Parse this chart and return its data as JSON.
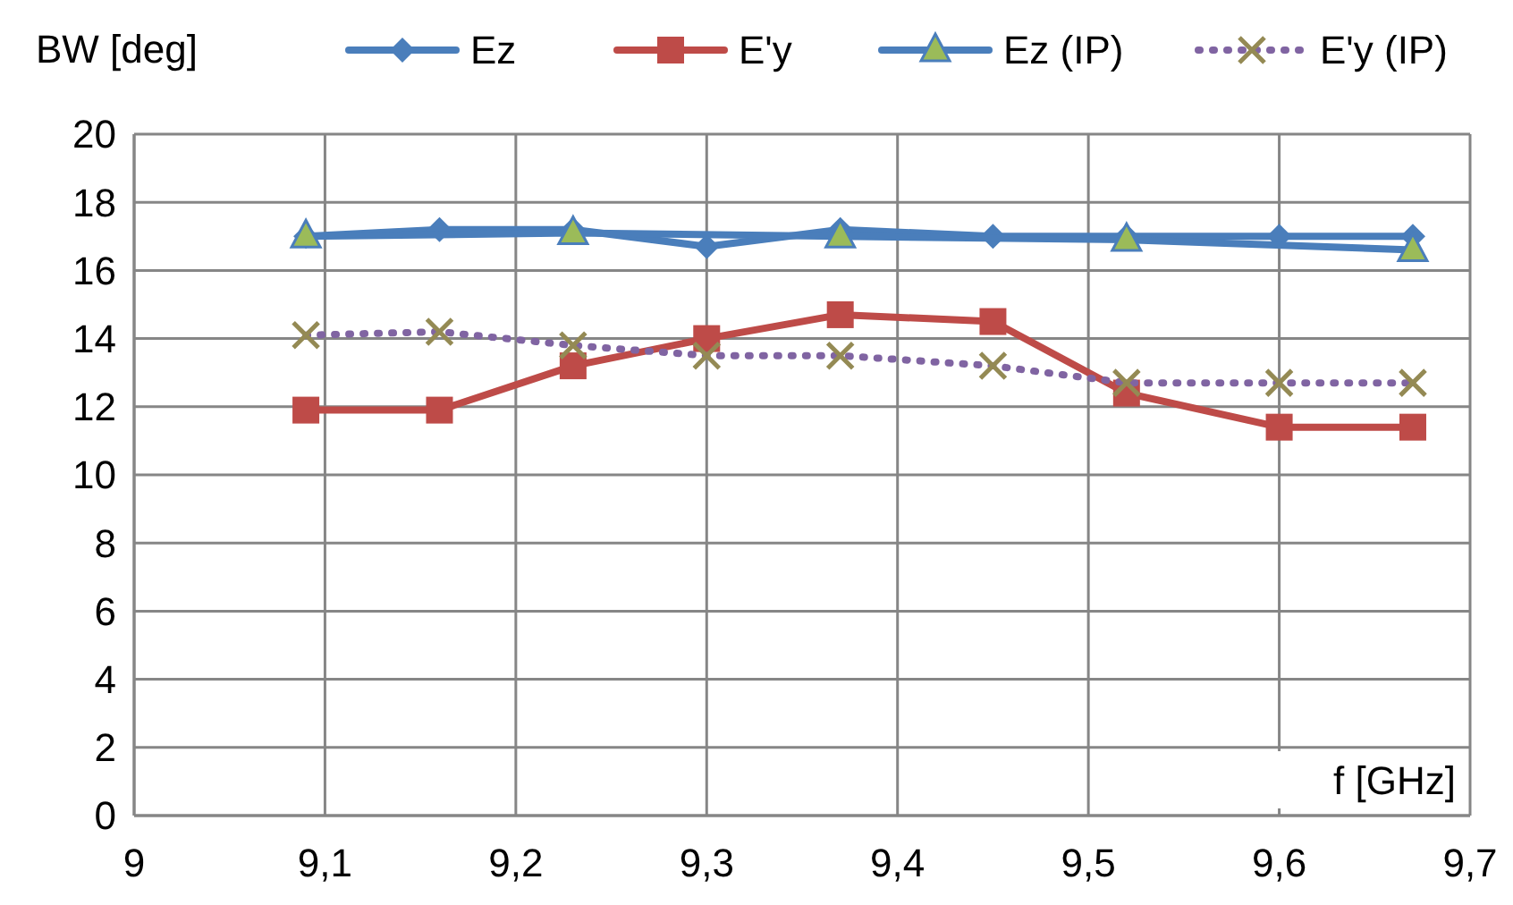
{
  "chart_data": {
    "type": "line",
    "xlabel": "f [GHz]",
    "ylabel": "BW [deg]",
    "x": [
      9.09,
      9.16,
      9.23,
      9.3,
      9.37,
      9.45,
      9.52,
      9.6,
      9.67
    ],
    "series": [
      {
        "name": "Ez",
        "color": "#4a7ebb",
        "marker": "diamond",
        "line_style": "solid",
        "values": [
          17.0,
          17.2,
          17.2,
          16.7,
          17.2,
          17.0,
          17.0,
          17.0,
          17.0
        ]
      },
      {
        "name": "E'y",
        "color": "#be4b48",
        "marker": "square",
        "line_style": "solid",
        "values": [
          11.9,
          11.9,
          13.2,
          14.0,
          14.7,
          14.5,
          12.4,
          11.4,
          11.4
        ]
      },
      {
        "name": "Ez (IP)",
        "color": "#4a7ebb",
        "marker": "triangle",
        "line_style": "solid",
        "values": [
          17.0,
          null,
          17.1,
          null,
          17.0,
          null,
          16.9,
          null,
          16.6
        ]
      },
      {
        "name": "E'y (IP)",
        "color": "#8064a2",
        "marker": "cross",
        "line_style": "dotted",
        "values": [
          14.1,
          14.2,
          13.8,
          13.5,
          13.5,
          13.2,
          12.7,
          12.7,
          12.7
        ]
      }
    ],
    "xlim": [
      9,
      9.7
    ],
    "xticks": [
      9,
      {
        "value": 9.1,
        "label": "9,1"
      },
      {
        "value": 9.2,
        "label": "9,2"
      },
      {
        "value": 9.3,
        "label": "9,3"
      },
      {
        "value": 9.4,
        "label": "9,4"
      },
      {
        "value": 9.5,
        "label": "9,5"
      },
      {
        "value": 9.6,
        "label": "9,6"
      },
      {
        "value": 9.7,
        "label": "9,7"
      }
    ],
    "ylim": [
      0,
      20
    ],
    "yticks": [
      0,
      2,
      4,
      6,
      8,
      10,
      12,
      14,
      16,
      18,
      20
    ],
    "grid": true,
    "legend": "top"
  }
}
